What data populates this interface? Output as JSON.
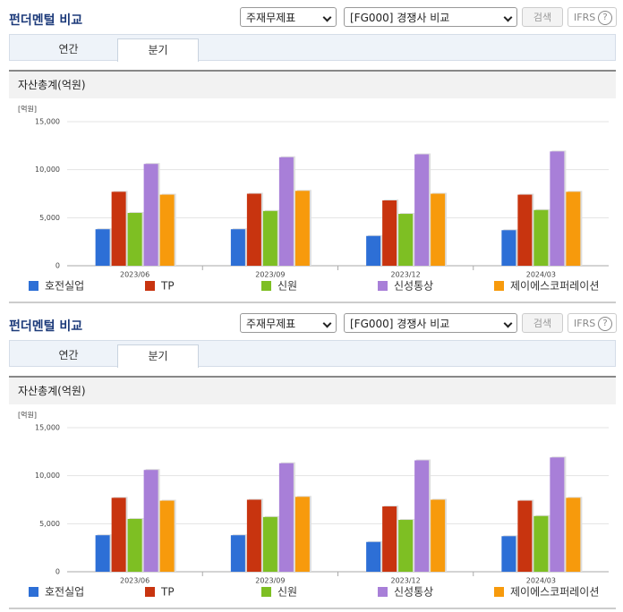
{
  "panels": [
    {
      "title": "펀더멘털 비교",
      "select_type": "주재무제표",
      "select_peer": "[FG000] 경쟁사 비교",
      "search": "검색",
      "ifrs": "IFRS",
      "help": "?",
      "tabs": [
        "연간",
        "분기"
      ],
      "section_title": "자산총계(억원)"
    },
    {
      "title": "펀더멘털 비교",
      "select_type": "주재무제표",
      "select_peer": "[FG000] 경쟁사 비교",
      "search": "검색",
      "ifrs": "IFRS",
      "help": "?",
      "tabs": [
        "연간",
        "분기"
      ],
      "section_title": "자산총계(억원)"
    }
  ],
  "chart_data": [
    {
      "type": "bar",
      "unit": "[억원]",
      "categories": [
        "2023/06",
        "2023/09",
        "2023/12",
        "2024/03"
      ],
      "series": [
        {
          "name": "호전실업",
          "color": "#2d6fd6",
          "values": [
            3800,
            3800,
            3100,
            3700
          ]
        },
        {
          "name": "TP",
          "color": "#c8340f",
          "values": [
            7700,
            7500,
            6800,
            7400
          ]
        },
        {
          "name": "신원",
          "color": "#7ebf23",
          "values": [
            5500,
            5700,
            5400,
            5800
          ]
        },
        {
          "name": "신성통상",
          "color": "#a87fd8",
          "values": [
            10600,
            11300,
            11600,
            11900
          ]
        },
        {
          "name": "제이에스코퍼레이션",
          "color": "#f79a0c",
          "values": [
            7400,
            7800,
            7500,
            7700
          ]
        }
      ],
      "ylim": [
        0,
        15000
      ],
      "yticks": [
        0,
        {
          "value": 5000,
          "label": "5,000"
        },
        {
          "value": 10000,
          "label": "10,000"
        },
        {
          "value": 15000,
          "label": "15,000"
        }
      ],
      "grid": true
    },
    {
      "type": "bar",
      "unit": "[억원]",
      "categories": [
        "2023/06",
        "2023/09",
        "2023/12",
        "2024/03"
      ],
      "series": [
        {
          "name": "호전실업",
          "color": "#2d6fd6",
          "values": [
            3800,
            3800,
            3100,
            3700
          ]
        },
        {
          "name": "TP",
          "color": "#c8340f",
          "values": [
            7700,
            7500,
            6800,
            7400
          ]
        },
        {
          "name": "신원",
          "color": "#7ebf23",
          "values": [
            5500,
            5700,
            5400,
            5800
          ]
        },
        {
          "name": "신성통상",
          "color": "#a87fd8",
          "values": [
            10600,
            11300,
            11600,
            11900
          ]
        },
        {
          "name": "제이에스코퍼레이션",
          "color": "#f79a0c",
          "values": [
            7400,
            7800,
            7500,
            7700
          ]
        }
      ],
      "ylim": [
        0,
        15000
      ],
      "yticks": [
        0,
        {
          "value": 5000,
          "label": "5,000"
        },
        {
          "value": 10000,
          "label": "10,000"
        },
        {
          "value": 15000,
          "label": "15,000"
        }
      ],
      "grid": true
    }
  ]
}
